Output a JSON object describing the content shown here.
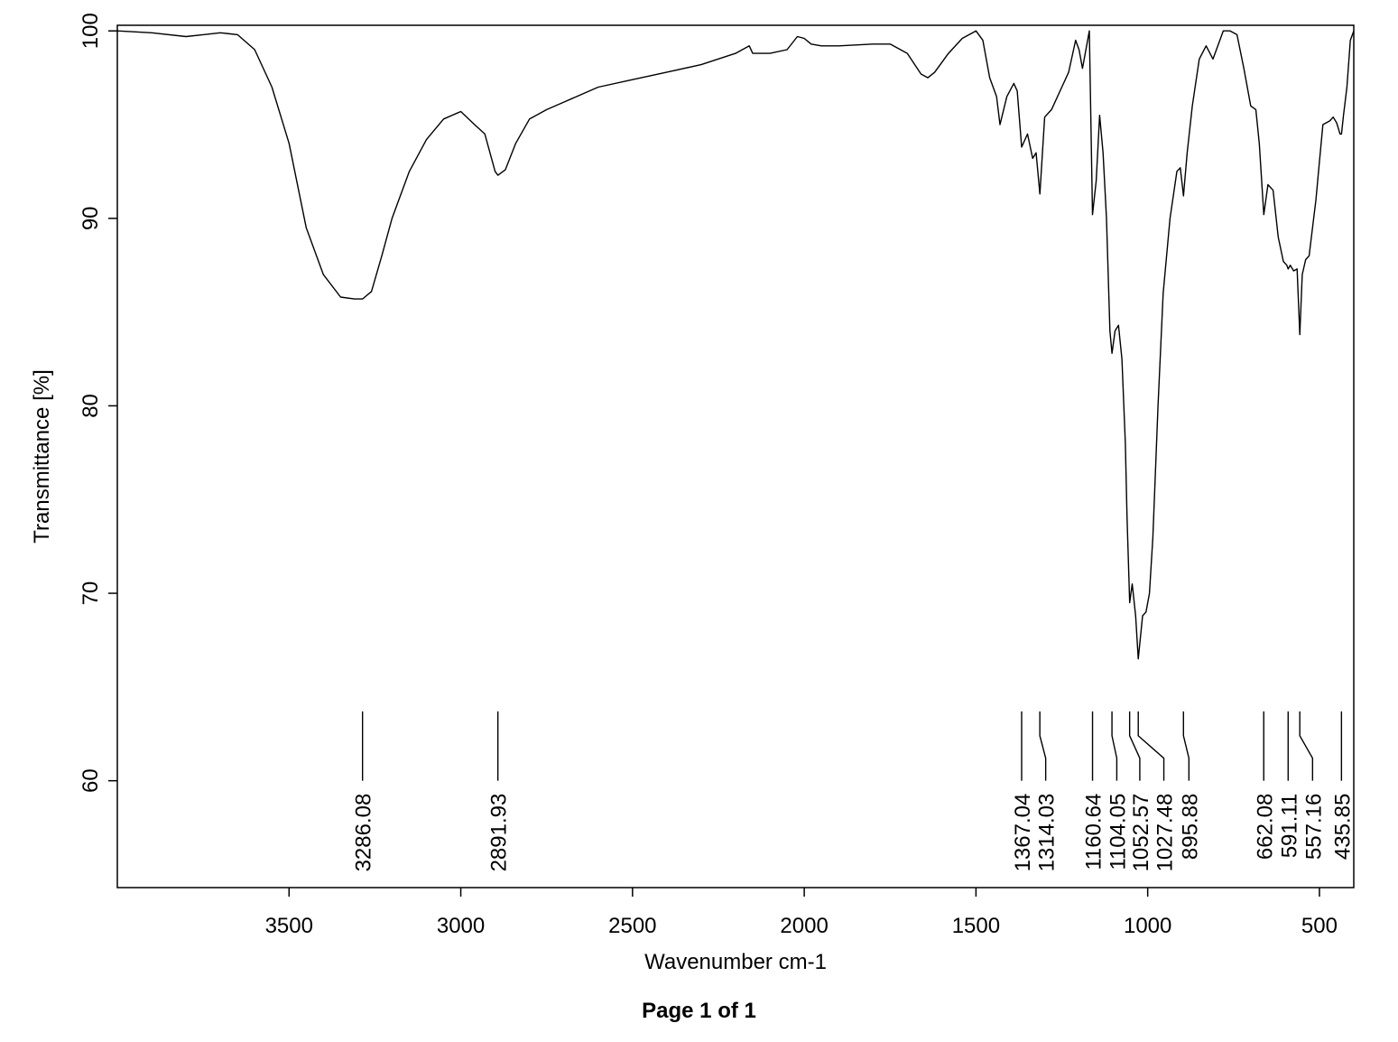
{
  "chart_data": {
    "type": "line",
    "xlabel": "Wavenumber cm-1",
    "ylabel": "Transmittance [%]",
    "xlim": [
      4000,
      400
    ],
    "ylim": [
      54.3,
      100.3
    ],
    "x_ticks": [
      3500,
      3000,
      2500,
      2000,
      1500,
      1000,
      500
    ],
    "x_tick_labels": [
      "3500",
      "3000",
      "2500",
      "2000",
      "1500",
      "1000",
      "500"
    ],
    "y_ticks": [
      60,
      70,
      80,
      90,
      100
    ],
    "y_tick_labels": [
      "60",
      "70",
      "80",
      "90",
      "100"
    ],
    "grid": false,
    "line_color": "#000000",
    "series": [
      {
        "x": [
          4000,
          3900,
          3800,
          3750,
          3700,
          3650,
          3600,
          3550,
          3500,
          3450,
          3400,
          3350,
          3310,
          3286.08,
          3260,
          3230,
          3200,
          3150,
          3100,
          3050,
          3000,
          2960,
          2930,
          2900,
          2891.93,
          2870,
          2840,
          2800,
          2750,
          2700,
          2600,
          2500,
          2400,
          2300,
          2200,
          2160,
          2150,
          2100,
          2050,
          2020,
          2000,
          1980,
          1950,
          1900,
          1800,
          1750,
          1700,
          1660,
          1640,
          1620,
          1580,
          1540,
          1500,
          1480,
          1460,
          1440,
          1430,
          1410,
          1390,
          1380,
          1367.04,
          1350,
          1335,
          1325,
          1314.03,
          1300,
          1280,
          1250,
          1230,
          1210,
          1200,
          1190,
          1180,
          1170,
          1160.64,
          1150,
          1140,
          1130,
          1120,
          1110,
          1104.05,
          1095,
          1085,
          1075,
          1065,
          1060,
          1052.57,
          1045,
          1035,
          1027.48,
          1015,
          1005,
          995,
          985,
          970,
          955,
          935,
          915,
          905,
          895.88,
          885,
          870,
          850,
          830,
          810,
          790,
          780,
          760,
          740,
          720,
          700,
          685,
          675,
          662.08,
          650,
          635,
          620,
          605,
          595,
          591.11,
          585,
          575,
          565,
          557.16,
          550,
          540,
          530,
          520,
          510,
          500,
          490,
          470,
          460,
          450,
          440,
          435.85,
          430,
          420,
          410,
          400
        ],
        "y": [
          100,
          99.9,
          99.7,
          99.8,
          99.9,
          99.8,
          99,
          97,
          94,
          89.5,
          87,
          85.8,
          85.7,
          85.7,
          86.1,
          88,
          90,
          92.5,
          94.2,
          95.3,
          95.7,
          95,
          94.5,
          92.5,
          92.3,
          92.6,
          94,
          95.3,
          95.8,
          96.2,
          97,
          97.4,
          97.8,
          98.2,
          98.8,
          99.2,
          98.8,
          98.8,
          99,
          99.7,
          99.6,
          99.3,
          99.2,
          99.2,
          99.3,
          99.3,
          98.8,
          97.7,
          97.5,
          97.8,
          98.8,
          99.6,
          100,
          99.5,
          97.5,
          96.5,
          95,
          96.5,
          97.2,
          96.8,
          93.8,
          94.5,
          93.2,
          93.5,
          91.3,
          95.4,
          95.8,
          97,
          97.8,
          99.5,
          99,
          98,
          99,
          100,
          90.2,
          92,
          95.5,
          93.5,
          90,
          84,
          82.8,
          84,
          84.3,
          82.5,
          78,
          74,
          69.5,
          70.5,
          68.8,
          66.5,
          68.8,
          69,
          70,
          73,
          80,
          86,
          90,
          92.5,
          92.7,
          91.2,
          93.5,
          96,
          98.5,
          99.2,
          98.5,
          99.5,
          100,
          100,
          99.8,
          98,
          96,
          95.8,
          94,
          90.2,
          91.8,
          91.5,
          89,
          87.7,
          87.5,
          87.3,
          87.5,
          87.2,
          87.3,
          83.8,
          87,
          87.8,
          88,
          89.5,
          91,
          93,
          95,
          95.2,
          95.4,
          95.1,
          94.5,
          94.5,
          95.5,
          97,
          99.5,
          100
        ]
      }
    ],
    "peak_marker_top_y": 63.7,
    "peak_marker_bottom_y": 60,
    "peaks": [
      {
        "x": 3286.08,
        "label": "3286.08",
        "label_x": 3286.08
      },
      {
        "x": 2891.93,
        "label": "2891.93",
        "label_x": 2891.93
      },
      {
        "x": 1367.04,
        "label": "1367.04",
        "label_x": 1367.04
      },
      {
        "x": 1314.03,
        "label": "1314.03",
        "label_x": 1297
      },
      {
        "x": 1160.64,
        "label": "1160.64",
        "label_x": 1160.64
      },
      {
        "x": 1104.05,
        "label": "1104.05",
        "label_x": 1090
      },
      {
        "x": 1052.57,
        "label": "1052.57",
        "label_x": 1023
      },
      {
        "x": 1027.48,
        "label": "1027.48",
        "label_x": 953
      },
      {
        "x": 895.88,
        "label": "895.88",
        "label_x": 880
      },
      {
        "x": 662.08,
        "label": "662.08",
        "label_x": 662.08
      },
      {
        "x": 591.11,
        "label": "591.11",
        "label_x": 591.11
      },
      {
        "x": 557.16,
        "label": "557.16",
        "label_x": 520
      },
      {
        "x": 435.85,
        "label": "435.85",
        "label_x": 435.85
      }
    ]
  },
  "footer": {
    "page_label": "Page 1 of 1"
  }
}
